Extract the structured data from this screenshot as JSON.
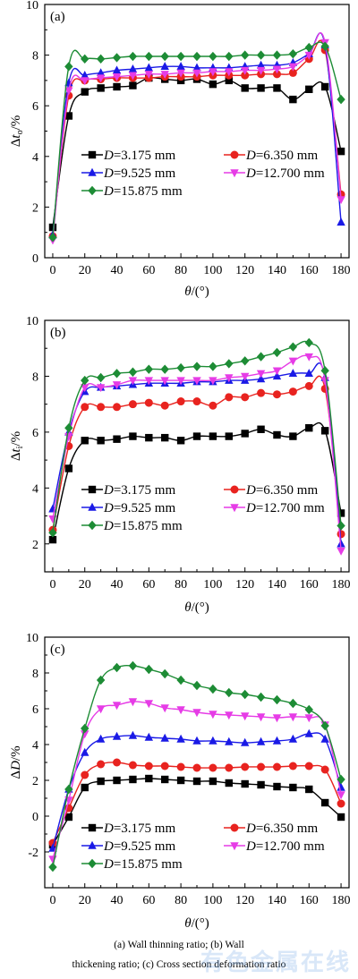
{
  "chart_data": [
    {
      "type": "line",
      "panel_label": "(a)",
      "ylabel_main": "Δ",
      "ylabel_italic": "t",
      "ylabel_sub": "o",
      "ylabel_unit": "/%",
      "xlabel_main": "θ",
      "xlabel_unit": "/(°)",
      "xlim": [
        -5,
        185
      ],
      "ylim": [
        0,
        10
      ],
      "xticks": [
        0,
        20,
        40,
        60,
        80,
        100,
        120,
        140,
        160,
        180
      ],
      "yticks": [
        0,
        2,
        4,
        6,
        8,
        10
      ],
      "x": [
        0,
        10,
        20,
        30,
        40,
        50,
        60,
        70,
        80,
        90,
        100,
        110,
        120,
        130,
        140,
        150,
        160,
        170,
        180
      ],
      "series": [
        {
          "name": "D=3.175 mm",
          "label_prefix": "D",
          "label_rest": "=3.175 mm",
          "color": "#000000",
          "marker": "square",
          "values": [
            1.2,
            5.6,
            6.55,
            6.7,
            6.75,
            6.8,
            7.1,
            7.05,
            7.0,
            7.05,
            6.85,
            7.0,
            6.7,
            6.7,
            6.7,
            6.25,
            6.65,
            6.75,
            4.2
          ]
        },
        {
          "name": "D=6.350 mm",
          "label_prefix": "D",
          "label_rest": "=6.350 mm",
          "color": "#e8231f",
          "marker": "circle",
          "values": [
            0.85,
            6.4,
            7.0,
            7.05,
            7.1,
            7.1,
            7.1,
            7.15,
            7.15,
            7.15,
            7.2,
            7.2,
            7.2,
            7.25,
            7.25,
            7.3,
            7.85,
            8.2,
            2.5
          ]
        },
        {
          "name": "D=9.525 mm",
          "label_prefix": "D",
          "label_rest": "=9.525 mm",
          "color": "#1a1ae6",
          "marker": "triangle-up",
          "values": [
            0.9,
            6.9,
            7.2,
            7.3,
            7.4,
            7.45,
            7.5,
            7.55,
            7.55,
            7.5,
            7.5,
            7.5,
            7.55,
            7.6,
            7.6,
            7.7,
            8.05,
            8.4,
            1.4
          ]
        },
        {
          "name": "D=12.700 mm",
          "label_prefix": "D",
          "label_rest": "=12.700 mm",
          "color": "#e63ce6",
          "marker": "triangle-down",
          "values": [
            0.7,
            6.6,
            7.0,
            7.1,
            7.15,
            7.2,
            7.25,
            7.25,
            7.3,
            7.3,
            7.35,
            7.35,
            7.4,
            7.4,
            7.45,
            7.55,
            8.0,
            8.5,
            2.3
          ]
        },
        {
          "name": "D=15.875 mm",
          "label_prefix": "D",
          "label_rest": "=15.875 mm",
          "color": "#1d8c35",
          "marker": "diamond",
          "values": [
            0.8,
            7.55,
            7.85,
            7.85,
            7.9,
            7.95,
            7.95,
            7.95,
            7.95,
            7.95,
            7.95,
            7.95,
            8.0,
            8.0,
            8.0,
            8.05,
            8.3,
            8.35,
            6.25
          ]
        }
      ]
    },
    {
      "type": "line",
      "panel_label": "(b)",
      "ylabel_main": "Δ",
      "ylabel_italic": "t",
      "ylabel_sub": "i",
      "ylabel_unit": "/%",
      "xlabel_main": "θ",
      "xlabel_unit": "/(°)",
      "xlim": [
        -5,
        185
      ],
      "ylim": [
        1,
        10
      ],
      "xticks": [
        0,
        20,
        40,
        60,
        80,
        100,
        120,
        140,
        160,
        180
      ],
      "yticks": [
        2,
        4,
        6,
        8,
        10
      ],
      "x": [
        0,
        10,
        20,
        30,
        40,
        50,
        60,
        70,
        80,
        90,
        100,
        110,
        120,
        130,
        140,
        150,
        160,
        170,
        180
      ],
      "series": [
        {
          "name": "D=3.175 mm",
          "label_prefix": "D",
          "label_rest": "=3.175 mm",
          "color": "#000000",
          "marker": "square",
          "values": [
            2.15,
            4.7,
            5.7,
            5.7,
            5.75,
            5.85,
            5.8,
            5.8,
            5.7,
            5.85,
            5.85,
            5.85,
            5.95,
            6.1,
            5.9,
            5.85,
            6.15,
            6.05,
            3.1
          ]
        },
        {
          "name": "D=6.350 mm",
          "label_prefix": "D",
          "label_rest": "=6.350 mm",
          "color": "#e8231f",
          "marker": "circle",
          "values": [
            2.5,
            5.5,
            6.9,
            6.9,
            6.9,
            7.0,
            7.05,
            6.95,
            7.1,
            7.1,
            6.95,
            7.25,
            7.25,
            7.4,
            7.35,
            7.45,
            7.65,
            7.55,
            2.35
          ]
        },
        {
          "name": "D=9.525 mm",
          "label_prefix": "D",
          "label_rest": "=9.525 mm",
          "color": "#1a1ae6",
          "marker": "triangle-up",
          "values": [
            3.25,
            6.0,
            7.45,
            7.6,
            7.65,
            7.7,
            7.75,
            7.75,
            7.75,
            7.8,
            7.8,
            7.85,
            7.85,
            7.9,
            8.0,
            8.1,
            8.1,
            7.95,
            2.0
          ]
        },
        {
          "name": "D=12.700 mm",
          "label_prefix": "D",
          "label_rest": "=12.700 mm",
          "color": "#e63ce6",
          "marker": "triangle-down",
          "values": [
            2.9,
            5.85,
            7.6,
            7.6,
            7.7,
            7.85,
            7.85,
            7.85,
            7.85,
            7.85,
            7.85,
            7.95,
            8.0,
            8.1,
            8.2,
            8.55,
            8.7,
            7.85,
            1.75
          ]
        },
        {
          "name": "D=15.875 mm",
          "label_prefix": "D",
          "label_rest": "=15.875 mm",
          "color": "#1d8c35",
          "marker": "diamond",
          "values": [
            2.4,
            6.15,
            7.85,
            7.95,
            8.1,
            8.15,
            8.25,
            8.25,
            8.3,
            8.35,
            8.35,
            8.45,
            8.55,
            8.7,
            8.85,
            9.05,
            9.2,
            8.2,
            2.65
          ]
        }
      ]
    },
    {
      "type": "line",
      "panel_label": "(c)",
      "ylabel_main": "Δ",
      "ylabel_italic": "D",
      "ylabel_sub": "",
      "ylabel_unit": "/%",
      "xlabel_main": "θ",
      "xlabel_unit": "/(°)",
      "xlim": [
        -5,
        185
      ],
      "ylim": [
        -4,
        10
      ],
      "xticks": [
        0,
        20,
        40,
        60,
        80,
        100,
        120,
        140,
        160,
        180
      ],
      "yticks": [
        -2,
        0,
        2,
        4,
        6,
        8,
        10
      ],
      "x": [
        0,
        10,
        20,
        30,
        40,
        50,
        60,
        70,
        80,
        90,
        100,
        110,
        120,
        130,
        140,
        150,
        160,
        170,
        180
      ],
      "series": [
        {
          "name": "D=3.175 mm",
          "label_prefix": "D",
          "label_rest": "=3.175 mm",
          "color": "#000000",
          "marker": "square",
          "values": [
            -1.6,
            -0.05,
            1.6,
            1.95,
            2.0,
            2.05,
            2.1,
            2.05,
            2.0,
            1.95,
            1.95,
            1.85,
            1.8,
            1.75,
            1.65,
            1.6,
            1.5,
            0.75,
            -0.05
          ]
        },
        {
          "name": "D=6.350 mm",
          "label_prefix": "D",
          "label_rest": "=6.350 mm",
          "color": "#e8231f",
          "marker": "circle",
          "values": [
            -1.5,
            0.45,
            2.3,
            2.9,
            3.0,
            2.85,
            2.8,
            2.8,
            2.75,
            2.7,
            2.7,
            2.7,
            2.75,
            2.75,
            2.75,
            2.8,
            2.8,
            2.6,
            0.7
          ]
        },
        {
          "name": "D=9.525 mm",
          "label_prefix": "D",
          "label_rest": "=9.525 mm",
          "color": "#1a1ae6",
          "marker": "triangle-up",
          "values": [
            -1.8,
            1.5,
            3.55,
            4.3,
            4.45,
            4.5,
            4.4,
            4.35,
            4.3,
            4.2,
            4.2,
            4.15,
            4.1,
            4.15,
            4.2,
            4.3,
            4.6,
            4.3,
            1.6
          ]
        },
        {
          "name": "D=12.700 mm",
          "label_prefix": "D",
          "label_rest": "=12.700 mm",
          "color": "#e63ce6",
          "marker": "triangle-down",
          "values": [
            -2.4,
            0.9,
            4.6,
            6.0,
            6.2,
            6.4,
            6.3,
            6.05,
            5.95,
            5.8,
            5.7,
            5.65,
            5.6,
            5.55,
            5.5,
            5.55,
            5.5,
            5.1,
            1.2
          ]
        },
        {
          "name": "D=15.875 mm",
          "label_prefix": "D",
          "label_rest": "=15.875 mm",
          "color": "#1d8c35",
          "marker": "diamond",
          "values": [
            -2.85,
            1.5,
            4.9,
            7.6,
            8.3,
            8.4,
            8.2,
            7.95,
            7.6,
            7.3,
            7.1,
            6.9,
            6.8,
            6.65,
            6.5,
            6.3,
            5.95,
            5.05,
            2.05
          ]
        }
      ]
    }
  ],
  "caption": {
    "line1": "(a)  Wall  thinning  ratio;  (b)  Wall",
    "line2": "thickening ratio; (c) Cross section deformation ratio"
  },
  "watermark": "有色金属在线"
}
